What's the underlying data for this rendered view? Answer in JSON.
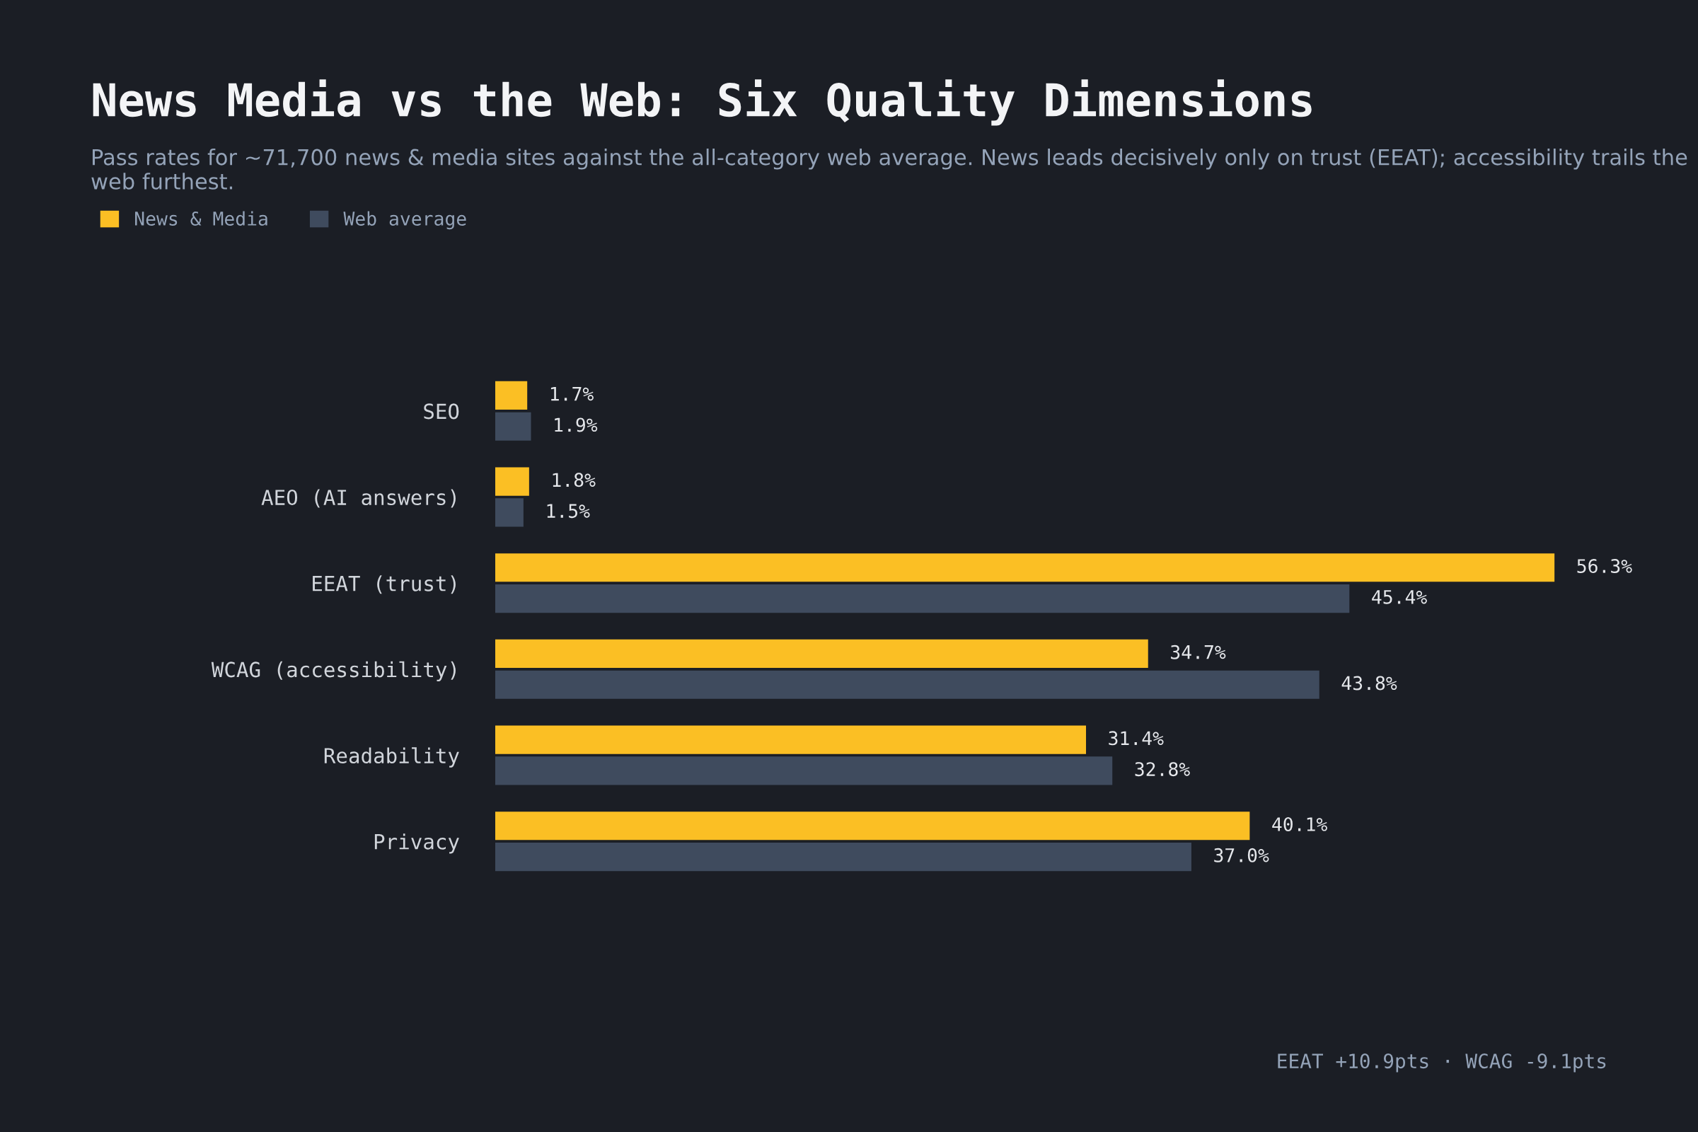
{
  "chart_data": {
    "type": "bar",
    "orientation": "horizontal",
    "title": "News Media vs the Web: Six Quality Dimensions",
    "subtitle": "Pass rates for ~71,700 news & media sites against the all-category web average. News leads decisively only on trust (EEAT); accessibility trails the web furthest.",
    "categories": [
      "SEO",
      "AEO (AI answers)",
      "EEAT (trust)",
      "WCAG (accessibility)",
      "Readability",
      "Privacy"
    ],
    "series": [
      {
        "name": "News & Media",
        "color": "#fbbf24",
        "values": [
          1.7,
          1.8,
          56.3,
          34.7,
          31.4,
          40.1
        ],
        "value_labels": [
          "1.7%",
          "1.8%",
          "56.3%",
          "34.7%",
          "31.4%",
          "40.1%"
        ]
      },
      {
        "name": "Web average",
        "color": "#3f4b5e",
        "values": [
          1.9,
          1.5,
          45.4,
          43.8,
          32.8,
          37.0
        ],
        "value_labels": [
          "1.9%",
          "1.5%",
          "45.4%",
          "43.8%",
          "32.8%",
          "37.0%"
        ]
      }
    ],
    "tick_labels": "y",
    "grid": false,
    "legend": "top left",
    "annotations": [
      "EEAT +10.9pts · WCAG -9.1pts"
    ]
  }
}
